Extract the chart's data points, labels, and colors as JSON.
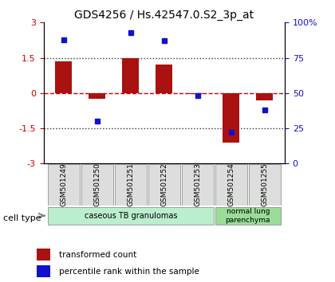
{
  "title": "GDS4256 / Hs.42547.0.S2_3p_at",
  "samples": [
    "GSM501249",
    "GSM501250",
    "GSM501251",
    "GSM501252",
    "GSM501253",
    "GSM501254",
    "GSM501255"
  ],
  "transformed_counts": [
    1.35,
    -0.25,
    1.5,
    1.2,
    -0.05,
    -2.1,
    -0.3
  ],
  "percentile_ranks": [
    88,
    30,
    93,
    87,
    48,
    22,
    38
  ],
  "yticks_left": [
    -3,
    -1.5,
    0,
    1.5,
    3
  ],
  "ytick_labels_left": [
    "-3",
    "-1.5",
    "0",
    "1.5",
    "3"
  ],
  "yticks_right": [
    0,
    25,
    50,
    75,
    100
  ],
  "ytick_labels_right": [
    "0",
    "25",
    "50",
    "75",
    "100%"
  ],
  "bar_color": "#aa1111",
  "dot_color": "#1111cc",
  "hline_color": "#cc0000",
  "dotted_color": "#333333",
  "cell_type1_label": "caseous TB granulomas",
  "cell_type2_label": "normal lung\nparenchyma",
  "cell_type1_color": "#bbeecc",
  "cell_type2_color": "#99dd99",
  "legend_bar_label": "transformed count",
  "legend_dot_label": "percentile rank within the sample",
  "cell_type_label": "cell type",
  "background_color": "#ffffff"
}
